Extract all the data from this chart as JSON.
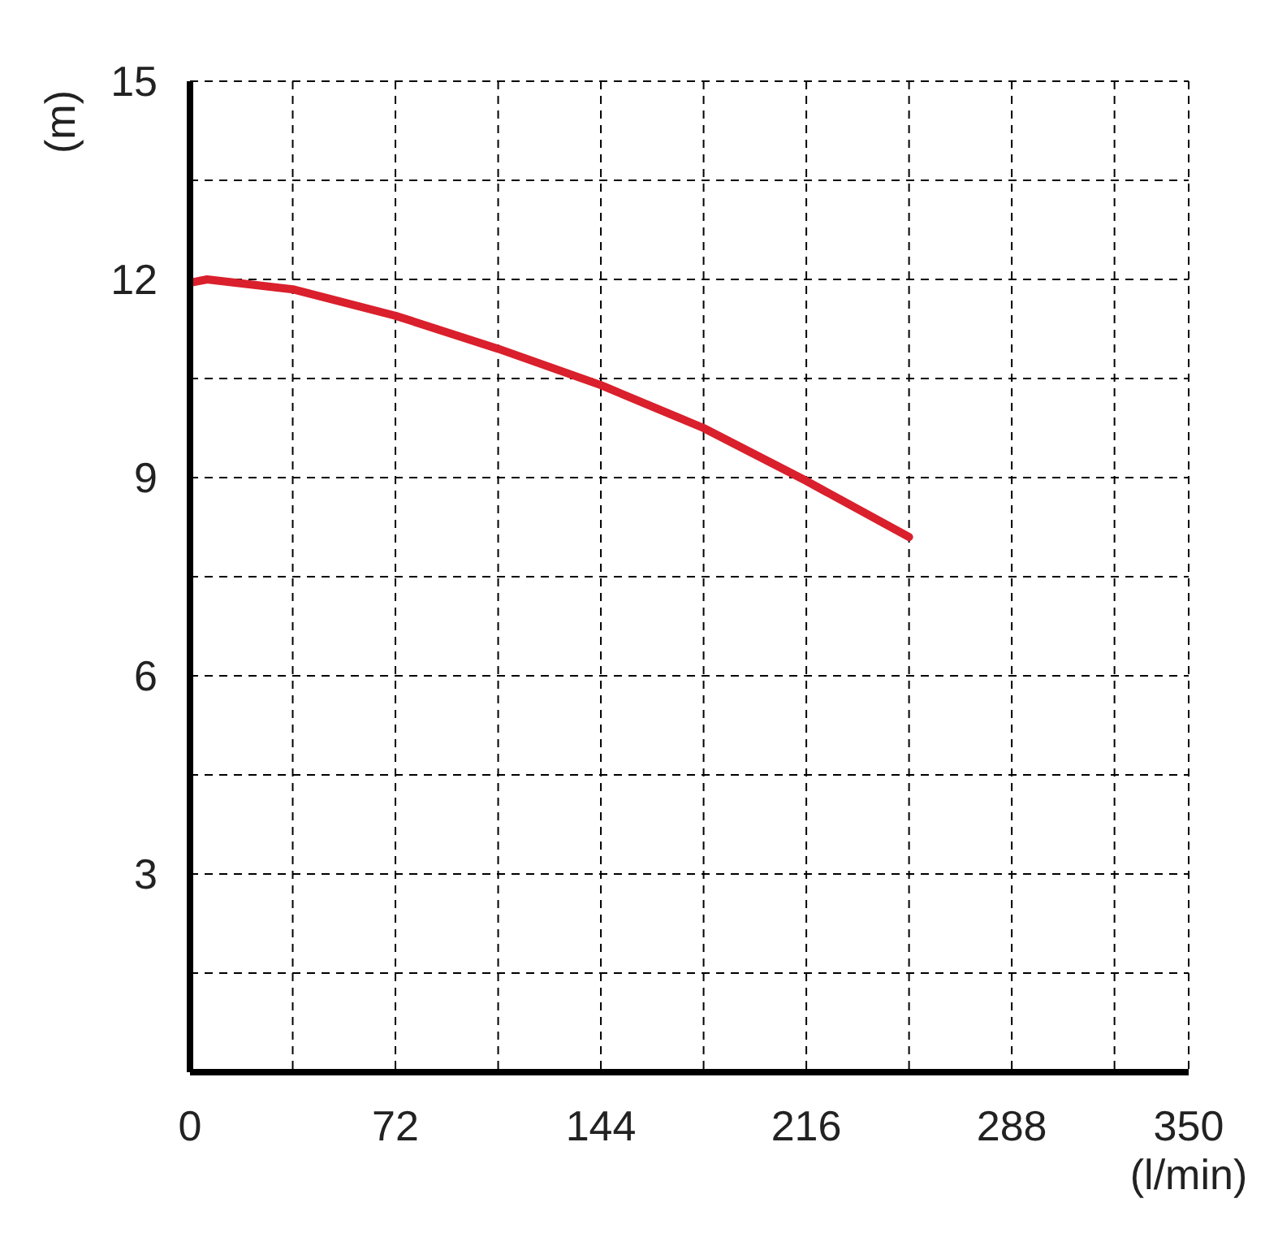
{
  "chart_data": {
    "type": "line",
    "xlabel": "(l/min)",
    "ylabel": "(m)",
    "x": [
      0,
      6,
      36,
      72,
      108,
      144,
      180,
      216,
      252
    ],
    "series": [
      {
        "color": "#d9202c",
        "values": [
          11.95,
          12.0,
          11.85,
          11.45,
          10.95,
          10.4,
          9.75,
          8.95,
          8.1
        ]
      }
    ],
    "xlim": [
      0,
      350
    ],
    "xticks": [
      0,
      {
        "value": 36,
        "label": null
      },
      72,
      {
        "value": 108,
        "label": null
      },
      144,
      {
        "value": 180,
        "label": null
      },
      216,
      {
        "value": 252,
        "label": null
      },
      288,
      {
        "value": 324,
        "label": null
      },
      350
    ],
    "ylim": [
      0,
      15
    ],
    "yticks": [
      {
        "value": 0,
        "label": null
      },
      {
        "value": 1.5,
        "label": null
      },
      3,
      {
        "value": 4.5,
        "label": null
      },
      6,
      {
        "value": 7.5,
        "label": null
      },
      9,
      {
        "value": 10.5,
        "label": null
      },
      12,
      {
        "value": 13.5,
        "label": null
      },
      15
    ],
    "grid": true,
    "legend": false,
    "marker": "none",
    "line_style": "solid"
  }
}
